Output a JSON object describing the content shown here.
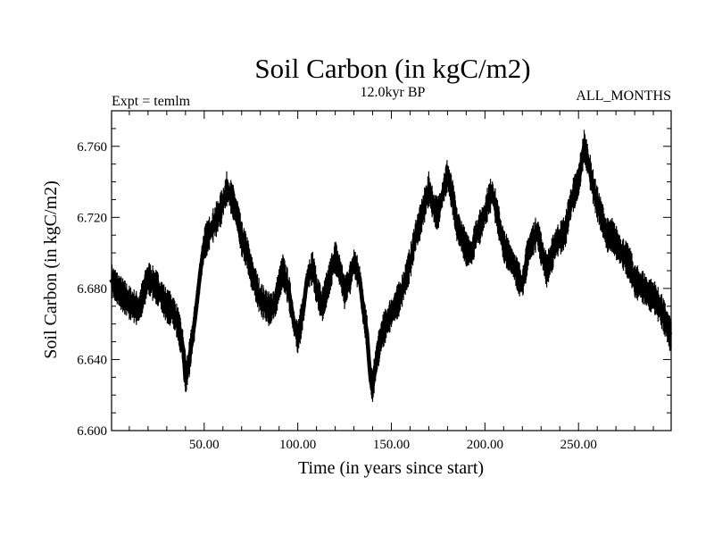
{
  "chart_data": {
    "type": "line",
    "title": "Soil Carbon (in kgC/m2)",
    "subtitle": "12.0kyr BP",
    "left_label": "Expt = temlm",
    "right_label": "ALL_MONTHS",
    "xlabel": "Time (in years since start)",
    "ylabel": "Soil Carbon (in kgC/m2)",
    "xlim": [
      0.5,
      299.5
    ],
    "ylim": [
      6.6,
      6.78
    ],
    "x_ticks": [
      50,
      100,
      150,
      200,
      250
    ],
    "x_tick_labels": [
      "50.00",
      "100.00",
      "150.00",
      "200.00",
      "250.00"
    ],
    "y_ticks": [
      6.6,
      6.64,
      6.68,
      6.72,
      6.76
    ],
    "y_tick_labels": [
      "6.600",
      "6.640",
      "6.680",
      "6.720",
      "6.760"
    ],
    "line_color": "#000000",
    "series": [
      {
        "x": [
          0,
          5,
          10,
          15,
          20,
          25,
          30,
          33,
          36,
          39,
          40,
          42,
          45,
          48,
          50,
          55,
          58,
          60,
          62,
          65,
          68,
          70,
          73,
          75,
          80,
          85,
          88,
          90,
          92,
          95,
          98,
          100,
          103,
          105,
          108,
          110,
          113,
          115,
          118,
          120,
          123,
          125,
          128,
          130,
          133,
          135,
          137,
          138,
          139,
          140,
          142,
          145,
          150,
          155,
          160,
          163,
          165,
          168,
          170,
          173,
          175,
          178,
          180,
          183,
          185,
          188,
          190,
          193,
          195,
          198,
          200,
          202,
          204,
          206,
          208,
          210,
          213,
          215,
          218,
          220,
          223,
          225,
          228,
          230,
          233,
          235,
          238,
          240,
          243,
          245,
          247,
          250,
          253,
          255,
          258,
          260,
          263,
          265,
          268,
          270,
          273,
          275,
          278,
          280,
          283,
          285,
          288,
          290,
          293,
          295,
          297,
          299
        ],
        "y": [
          6.685,
          6.678,
          6.672,
          6.668,
          6.686,
          6.68,
          6.67,
          6.668,
          6.66,
          6.645,
          6.628,
          6.64,
          6.662,
          6.69,
          6.705,
          6.716,
          6.722,
          6.728,
          6.736,
          6.73,
          6.72,
          6.708,
          6.7,
          6.69,
          6.674,
          6.668,
          6.672,
          6.682,
          6.69,
          6.68,
          6.66,
          6.652,
          6.668,
          6.686,
          6.692,
          6.68,
          6.67,
          6.678,
          6.69,
          6.698,
          6.688,
          6.678,
          6.686,
          6.695,
          6.686,
          6.668,
          6.655,
          6.64,
          6.628,
          6.625,
          6.64,
          6.655,
          6.666,
          6.676,
          6.694,
          6.71,
          6.716,
          6.728,
          6.736,
          6.724,
          6.722,
          6.736,
          6.744,
          6.73,
          6.716,
          6.708,
          6.702,
          6.7,
          6.71,
          6.716,
          6.722,
          6.73,
          6.734,
          6.724,
          6.714,
          6.704,
          6.698,
          6.694,
          6.686,
          6.682,
          6.7,
          6.706,
          6.712,
          6.702,
          6.69,
          6.696,
          6.706,
          6.708,
          6.712,
          6.724,
          6.732,
          6.74,
          6.76,
          6.752,
          6.736,
          6.728,
          6.718,
          6.71,
          6.71,
          6.706,
          6.7,
          6.698,
          6.692,
          6.684,
          6.682,
          6.68,
          6.676,
          6.676,
          6.67,
          6.666,
          6.66,
          6.654
        ]
      }
    ]
  }
}
